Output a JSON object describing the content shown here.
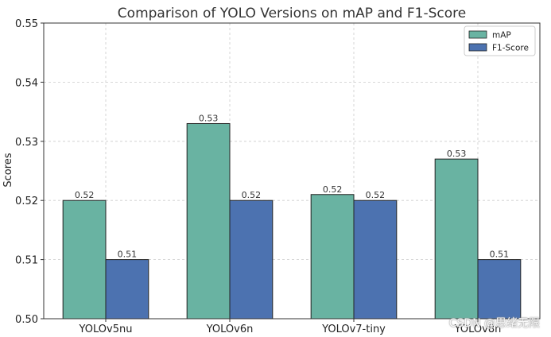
{
  "chart_data": {
    "type": "bar",
    "title": "Comparison of YOLO Versions on mAP and F1-Score",
    "xlabel": "",
    "ylabel": "Scores",
    "ylim": [
      0.5,
      0.55
    ],
    "yticks": [
      "0.50",
      "0.51",
      "0.52",
      "0.53",
      "0.54",
      "0.55"
    ],
    "grid": true,
    "legend_position": "top-right",
    "categories": [
      "YOLOv5nu",
      "YOLOv6n",
      "YOLOv7-tiny",
      "YOLOv8n"
    ],
    "series": [
      {
        "name": "mAP",
        "color": "#69b3a2",
        "values": [
          0.52,
          0.533,
          0.521,
          0.527
        ],
        "labels": [
          "0.52",
          "0.53",
          "0.52",
          "0.53"
        ]
      },
      {
        "name": "F1-Score",
        "color": "#4c72b0",
        "values": [
          0.51,
          0.52,
          0.52,
          0.51
        ],
        "labels": [
          "0.51",
          "0.52",
          "0.52",
          "0.51"
        ]
      }
    ]
  },
  "watermark": "CSDN @思绪无限"
}
